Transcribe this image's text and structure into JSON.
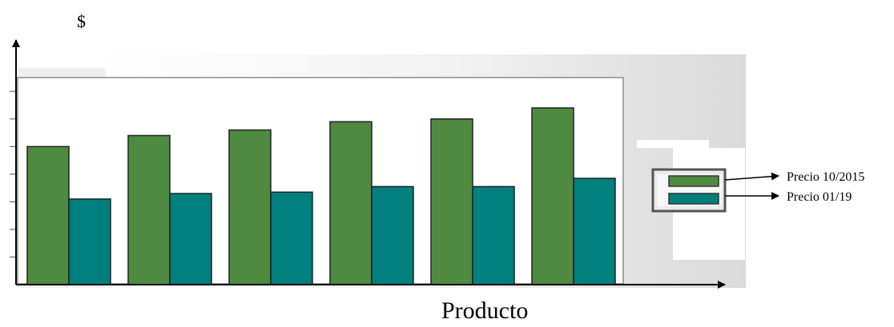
{
  "chart_data": {
    "type": "bar",
    "title": "",
    "xlabel": "Producto",
    "ylabel": "$",
    "categories": [
      "",
      "",
      "",
      "",
      "",
      ""
    ],
    "series": [
      {
        "name": "Precio 10/2015",
        "color": "#4e8a3f",
        "values": [
          5.0,
          5.4,
          5.6,
          5.9,
          6.0,
          6.4
        ]
      },
      {
        "name": "Precio 01/19",
        "color": "#007f7f",
        "values": [
          3.1,
          3.3,
          3.35,
          3.55,
          3.55,
          3.85
        ]
      }
    ],
    "ylim": [
      0,
      7.5
    ],
    "grid": false,
    "legend": "right"
  }
}
